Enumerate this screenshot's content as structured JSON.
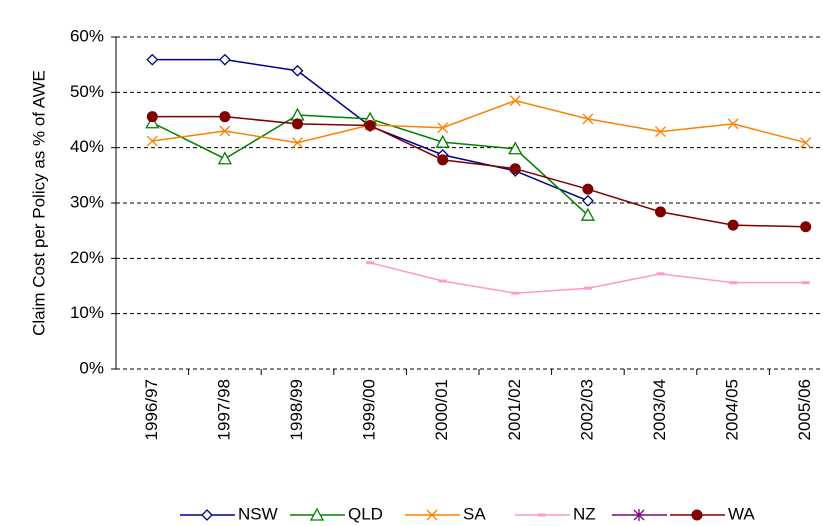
{
  "chart_data": {
    "type": "line",
    "y_label": "Claim Cost per Policy as % of AWE",
    "categories": [
      "1996/97",
      "1997/98",
      "1998/99",
      "1999/00",
      "2000/01",
      "2001/02",
      "2002/03",
      "2003/04",
      "2004/05",
      "2005/06"
    ],
    "series": [
      {
        "name": "NSW",
        "color": "#00008b",
        "marker": "diamond",
        "values": [
          55.9,
          55.9,
          53.9,
          43.9,
          38.7,
          35.8,
          30.4,
          null,
          null,
          null
        ]
      },
      {
        "name": "QLD",
        "color": "#008000",
        "marker": "triangle",
        "values": [
          44.5,
          38.0,
          45.9,
          45.2,
          41.0,
          39.8,
          27.8,
          null,
          null,
          null
        ]
      },
      {
        "name": "SA",
        "color": "#ff8000",
        "marker": "x",
        "values": [
          41.2,
          43.0,
          40.9,
          44.1,
          43.6,
          48.5,
          45.2,
          42.9,
          44.3,
          40.9
        ]
      },
      {
        "name": "NZ",
        "color": "#ff99cc",
        "marker": "dash",
        "values": [
          null,
          null,
          null,
          19.2,
          15.9,
          13.7,
          14.6,
          17.2,
          15.6,
          15.6
        ]
      },
      {
        "color": "#800080",
        "marker": "asterisk",
        "values": [
          null,
          null,
          null,
          null,
          null,
          null,
          null,
          null,
          null,
          null
        ]
      },
      {
        "name": "WA",
        "color": "#800000",
        "marker": "circle",
        "values": [
          45.6,
          45.6,
          44.3,
          44.0,
          37.8,
          36.2,
          32.5,
          28.4,
          26.0,
          25.7
        ]
      }
    ],
    "ylim": [
      0,
      60
    ],
    "yticks": [
      {
        "value": 0,
        "label": "0%"
      },
      {
        "value": 10,
        "label": "10%"
      },
      {
        "value": 20,
        "label": "20%"
      },
      {
        "value": 30,
        "label": "30%"
      },
      {
        "value": 40,
        "label": "40%"
      },
      {
        "value": 50,
        "label": "50%"
      },
      {
        "value": 60,
        "label": "60%"
      }
    ],
    "grid": true,
    "legend": "bottom"
  }
}
